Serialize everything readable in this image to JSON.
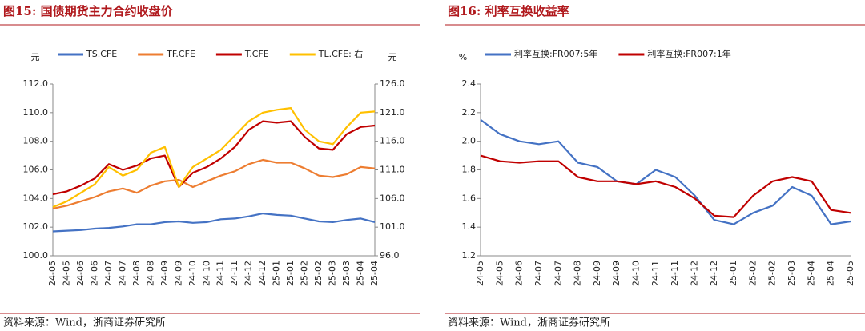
{
  "chart_data": [
    {
      "type": "line",
      "title": "图15:  国债期货主力合约收盘价",
      "source": "资料来源：Wind，浙商证券研究所",
      "y_label": "元",
      "y2_label": "元",
      "categories": [
        "24-05",
        "24-05",
        "24-06",
        "24-06",
        "24-07",
        "24-07",
        "24-08",
        "24-08",
        "24-09",
        "24-09",
        "24-10",
        "24-10",
        "24-11",
        "24-11",
        "24-12",
        "24-12",
        "25-01",
        "25-01",
        "25-02",
        "25-02",
        "25-03",
        "25-03",
        "25-04",
        "25-04"
      ],
      "series": [
        {
          "name": "TS.CFE",
          "color": "#4472c4",
          "values": [
            101.7,
            101.75,
            101.8,
            101.9,
            101.95,
            102.05,
            102.2,
            102.2,
            102.35,
            102.4,
            102.3,
            102.35,
            102.55,
            102.6,
            102.75,
            102.95,
            102.85,
            102.8,
            102.6,
            102.4,
            102.35,
            102.5,
            102.6,
            102.35
          ]
        },
        {
          "name": "TF.CFE",
          "color": "#ed7d31",
          "values": [
            103.3,
            103.5,
            103.8,
            104.1,
            104.5,
            104.7,
            104.4,
            104.9,
            105.2,
            105.3,
            104.8,
            105.2,
            105.6,
            105.9,
            106.4,
            106.7,
            106.5,
            106.5,
            106.1,
            105.6,
            105.5,
            105.7,
            106.2,
            106.1
          ]
        },
        {
          "name": "T.CFE",
          "color": "#c00000",
          "values": [
            104.3,
            104.5,
            104.9,
            105.4,
            106.4,
            106.0,
            106.3,
            106.8,
            107.0,
            104.8,
            105.8,
            106.2,
            106.8,
            107.6,
            108.8,
            109.4,
            109.3,
            109.4,
            108.3,
            107.5,
            107.4,
            108.5,
            109.0,
            109.1
          ]
        },
        {
          "name": "TL.CFE: 右",
          "color": "#ffc000",
          "axis": "y2",
          "values": [
            104.5,
            105.5,
            107,
            108.5,
            111.5,
            110,
            111,
            114,
            115,
            108,
            111.5,
            113,
            114.5,
            117,
            119.5,
            121,
            121.5,
            121.8,
            118,
            116,
            115.5,
            118.5,
            121,
            121.2
          ]
        }
      ],
      "ylim": [
        100,
        112
      ],
      "yticks": [
        {
          "value": 100,
          "label": "100.0"
        },
        {
          "value": 102,
          "label": "102.0"
        },
        {
          "value": 104,
          "label": "104.0"
        },
        {
          "value": 106,
          "label": "106.0"
        },
        {
          "value": 108,
          "label": "108.0"
        },
        {
          "value": 110,
          "label": "110.0"
        },
        {
          "value": 112,
          "label": "112.0"
        }
      ],
      "y2lim": [
        96,
        126
      ],
      "y2ticks": [
        {
          "value": 96,
          "label": "96.0"
        },
        {
          "value": 101,
          "label": "101.0"
        },
        {
          "value": 106,
          "label": "106.0"
        },
        {
          "value": 111,
          "label": "111.0"
        },
        {
          "value": 116,
          "label": "116.0"
        },
        {
          "value": 121,
          "label": "121.0"
        },
        {
          "value": 126,
          "label": "126.0"
        }
      ]
    },
    {
      "type": "line",
      "title": "图16:  利率互换收益率",
      "source": "资料来源：Wind，浙商证券研究所",
      "y_label": "%",
      "categories": [
        "24-05",
        "24-05",
        "24-06",
        "24-07",
        "24-07",
        "24-08",
        "24-09",
        "24-09",
        "24-10",
        "24-11",
        "24-11",
        "24-12",
        "24-12",
        "25-01",
        "25-02",
        "25-02",
        "25-03",
        "25-04",
        "25-04",
        "25-05"
      ],
      "series": [
        {
          "name": "利率互换:FR007:5年",
          "color": "#4472c4",
          "values": [
            2.15,
            2.05,
            2.0,
            1.98,
            2.0,
            1.85,
            1.82,
            1.72,
            1.7,
            1.8,
            1.75,
            1.62,
            1.45,
            1.42,
            1.5,
            1.55,
            1.68,
            1.62,
            1.42,
            1.44
          ]
        },
        {
          "name": "利率互换:FR007:1年",
          "color": "#c00000",
          "values": [
            1.9,
            1.86,
            1.85,
            1.86,
            1.86,
            1.75,
            1.72,
            1.72,
            1.7,
            1.72,
            1.68,
            1.6,
            1.48,
            1.47,
            1.62,
            1.72,
            1.75,
            1.72,
            1.52,
            1.5
          ]
        }
      ],
      "ylim": [
        1.2,
        2.4
      ],
      "yticks": [
        1.2,
        1.4,
        1.6,
        1.8,
        {
          "value": 2,
          "label": "2.0"
        },
        2.2,
        2.4
      ]
    }
  ]
}
